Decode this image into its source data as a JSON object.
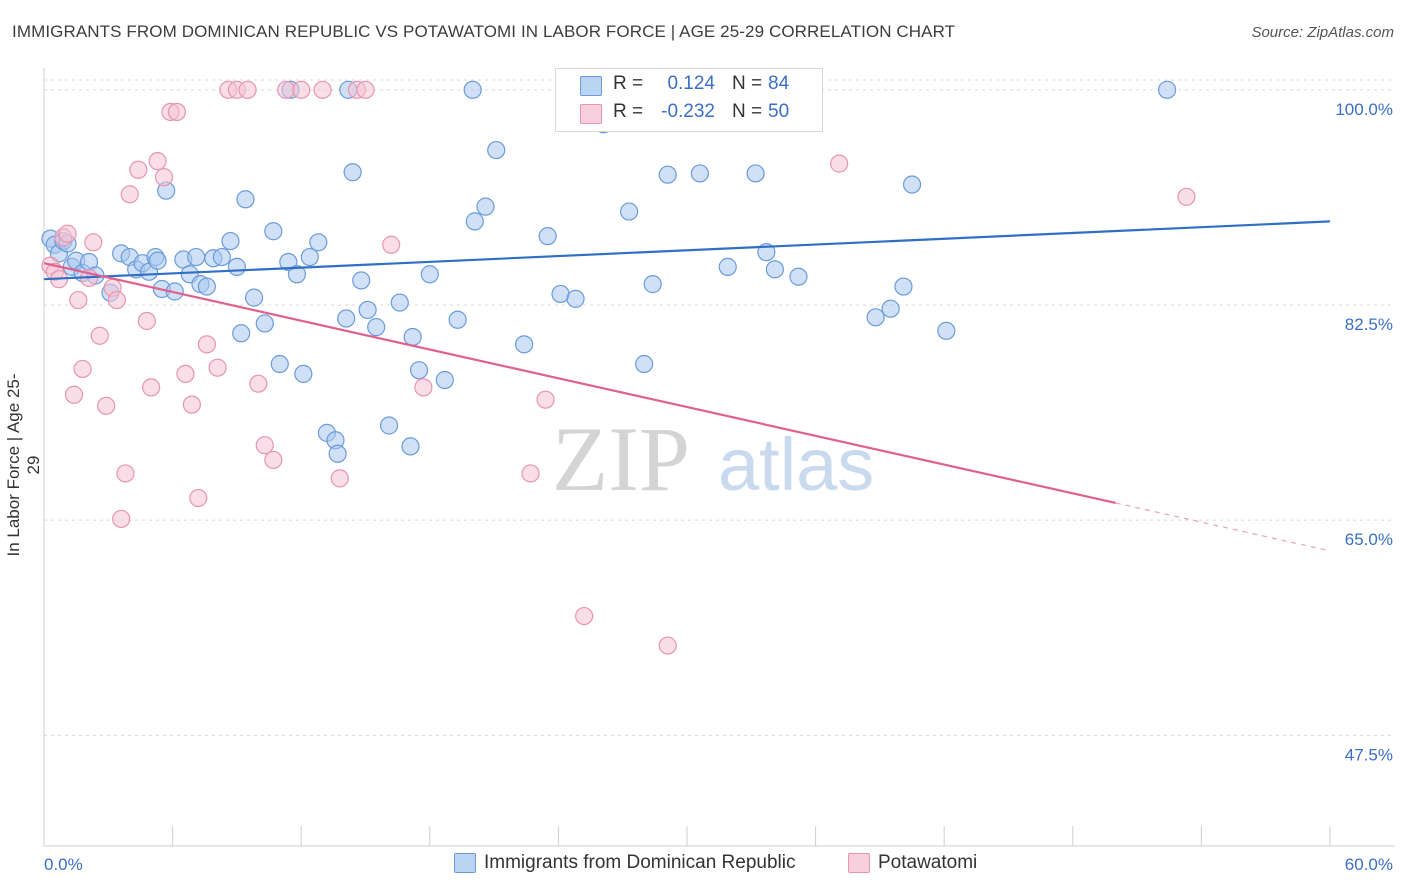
{
  "title": "IMMIGRANTS FROM DOMINICAN REPUBLIC VS POTAWATOMI IN LABOR FORCE | AGE 25-29 CORRELATION CHART",
  "source": "Source: ZipAtlas.com",
  "watermark": {
    "zip": "ZIP",
    "atlas": "atlas"
  },
  "colors": {
    "blue_fill": "#aac8f0",
    "blue_stroke": "#6a9bd8",
    "blue_line": "#2f6fc6",
    "pink_fill": "#f6c2d3",
    "pink_stroke": "#e695b0",
    "pink_line": "#e0608f",
    "tick_text": "#3a6fc4",
    "grid": "#d8d8d8"
  },
  "legend": {
    "rows": [
      {
        "r_label": "R =",
        "r_value": "0.124",
        "n_label": "N =",
        "n_value": "84"
      },
      {
        "r_label": "R =",
        "r_value": "-0.232",
        "n_label": "N =",
        "n_value": "50"
      }
    ]
  },
  "chart_data": {
    "type": "scatter",
    "title": "IMMIGRANTS FROM DOMINICAN REPUBLIC VS POTAWATOMI IN LABOR FORCE | AGE 25-29 CORRELATION CHART",
    "xlabel": "",
    "ylabel": "In Labor Force | Age 25-29",
    "xlim": [
      0,
      60
    ],
    "ylim": [
      38.5,
      100.8
    ],
    "x_tick_labels": [
      "0.0%",
      "60.0%"
    ],
    "y_ticks": [
      100.0,
      82.5,
      65.0,
      47.5
    ],
    "y_tick_labels": [
      "100.0%",
      "82.5%",
      "65.0%",
      "47.5%"
    ],
    "grid": "horizontal dashed",
    "legend_placement": "bottom",
    "series": [
      {
        "name": "Immigrants from Dominican Republic",
        "r": 0.124,
        "n": 84,
        "trend": {
          "x": [
            0,
            60
          ],
          "y": [
            84.6,
            89.3
          ],
          "dashed_from": null
        },
        "points": [
          [
            0.3,
            87.9
          ],
          [
            0.5,
            87.4
          ],
          [
            0.7,
            86.7
          ],
          [
            0.9,
            87.7
          ],
          [
            1.1,
            87.5
          ],
          [
            1.3,
            85.6
          ],
          [
            1.5,
            86.1
          ],
          [
            1.8,
            85.1
          ],
          [
            2.1,
            86.0
          ],
          [
            2.4,
            84.9
          ],
          [
            3.1,
            83.5
          ],
          [
            3.6,
            86.7
          ],
          [
            4.0,
            86.4
          ],
          [
            4.3,
            85.4
          ],
          [
            4.6,
            85.9
          ],
          [
            4.9,
            85.2
          ],
          [
            5.2,
            86.4
          ],
          [
            5.5,
            83.8
          ],
          [
            5.7,
            91.8
          ],
          [
            6.1,
            83.6
          ],
          [
            6.5,
            86.2
          ],
          [
            6.8,
            85.0
          ],
          [
            7.1,
            86.4
          ],
          [
            7.3,
            84.2
          ],
          [
            7.6,
            84.0
          ],
          [
            7.9,
            86.3
          ],
          [
            8.3,
            86.4
          ],
          [
            8.7,
            87.7
          ],
          [
            9.0,
            85.6
          ],
          [
            9.2,
            80.2
          ],
          [
            9.4,
            91.1
          ],
          [
            9.8,
            83.1
          ],
          [
            10.3,
            81.0
          ],
          [
            10.7,
            88.5
          ],
          [
            11.0,
            77.7
          ],
          [
            11.4,
            86.0
          ],
          [
            11.8,
            85.0
          ],
          [
            12.1,
            76.9
          ],
          [
            12.4,
            86.4
          ],
          [
            12.8,
            87.6
          ],
          [
            11.5,
            100.0
          ],
          [
            13.2,
            72.1
          ],
          [
            13.6,
            71.5
          ],
          [
            14.1,
            81.4
          ],
          [
            14.4,
            93.3
          ],
          [
            14.8,
            84.5
          ],
          [
            15.1,
            82.1
          ],
          [
            15.5,
            80.7
          ],
          [
            16.1,
            72.7
          ],
          [
            16.6,
            82.7
          ],
          [
            17.2,
            79.9
          ],
          [
            14.2,
            100.0
          ],
          [
            17.5,
            77.2
          ],
          [
            18.0,
            85.0
          ],
          [
            18.7,
            76.4
          ],
          [
            19.3,
            81.3
          ],
          [
            20.1,
            89.3
          ],
          [
            20.6,
            90.5
          ],
          [
            21.1,
            95.1
          ],
          [
            22.4,
            79.3
          ],
          [
            20.0,
            100.0
          ],
          [
            23.5,
            88.1
          ],
          [
            24.1,
            83.4
          ],
          [
            24.8,
            83.0
          ],
          [
            26.1,
            97.2
          ],
          [
            27.3,
            90.1
          ],
          [
            28.0,
            77.7
          ],
          [
            28.4,
            84.2
          ],
          [
            29.1,
            93.1
          ],
          [
            30.6,
            93.2
          ],
          [
            31.9,
            85.6
          ],
          [
            33.2,
            93.2
          ],
          [
            33.7,
            86.8
          ],
          [
            34.1,
            85.4
          ],
          [
            35.2,
            84.8
          ],
          [
            38.8,
            81.5
          ],
          [
            39.5,
            82.2
          ],
          [
            40.1,
            84.0
          ],
          [
            40.5,
            92.3
          ],
          [
            42.1,
            80.4
          ],
          [
            52.4,
            100.0
          ],
          [
            13.7,
            70.4
          ],
          [
            17.1,
            71.0
          ],
          [
            5.3,
            86.1
          ]
        ]
      },
      {
        "name": "Potawatomi",
        "r": -0.232,
        "n": 50,
        "trend": {
          "x": [
            0,
            60
          ],
          "y": [
            85.9,
            62.5
          ],
          "dashed_from": 50
        },
        "points": [
          [
            0.3,
            85.7
          ],
          [
            0.5,
            85.2
          ],
          [
            0.7,
            84.6
          ],
          [
            0.9,
            88.0
          ],
          [
            1.1,
            88.3
          ],
          [
            1.4,
            75.2
          ],
          [
            1.6,
            82.9
          ],
          [
            1.8,
            77.3
          ],
          [
            2.1,
            84.7
          ],
          [
            2.3,
            87.6
          ],
          [
            2.6,
            80.0
          ],
          [
            2.9,
            74.3
          ],
          [
            3.2,
            83.9
          ],
          [
            3.4,
            82.9
          ],
          [
            3.6,
            65.1
          ],
          [
            3.8,
            68.8
          ],
          [
            4.0,
            91.5
          ],
          [
            4.4,
            93.5
          ],
          [
            4.8,
            81.2
          ],
          [
            5.0,
            75.8
          ],
          [
            5.3,
            94.2
          ],
          [
            5.6,
            92.9
          ],
          [
            5.9,
            98.2
          ],
          [
            6.2,
            98.2
          ],
          [
            6.6,
            76.9
          ],
          [
            6.9,
            74.4
          ],
          [
            7.2,
            66.8
          ],
          [
            7.6,
            79.3
          ],
          [
            8.1,
            77.4
          ],
          [
            8.6,
            100.0
          ],
          [
            9.0,
            100.0
          ],
          [
            9.5,
            100.0
          ],
          [
            10.0,
            76.1
          ],
          [
            10.3,
            71.1
          ],
          [
            10.7,
            69.9
          ],
          [
            11.3,
            100.0
          ],
          [
            12.0,
            100.0
          ],
          [
            13.0,
            100.0
          ],
          [
            13.8,
            68.4
          ],
          [
            14.6,
            100.0
          ],
          [
            15.0,
            100.0
          ],
          [
            16.2,
            87.4
          ],
          [
            17.7,
            75.8
          ],
          [
            22.7,
            68.8
          ],
          [
            23.4,
            74.8
          ],
          [
            25.2,
            57.2
          ],
          [
            29.1,
            54.8
          ],
          [
            34.2,
            100.0
          ],
          [
            37.1,
            94.0
          ],
          [
            53.3,
            91.3
          ]
        ]
      }
    ]
  },
  "bottom_legend": {
    "items": [
      {
        "label": "Immigrants from Dominican Republic"
      },
      {
        "label": "Potawatomi"
      }
    ]
  }
}
